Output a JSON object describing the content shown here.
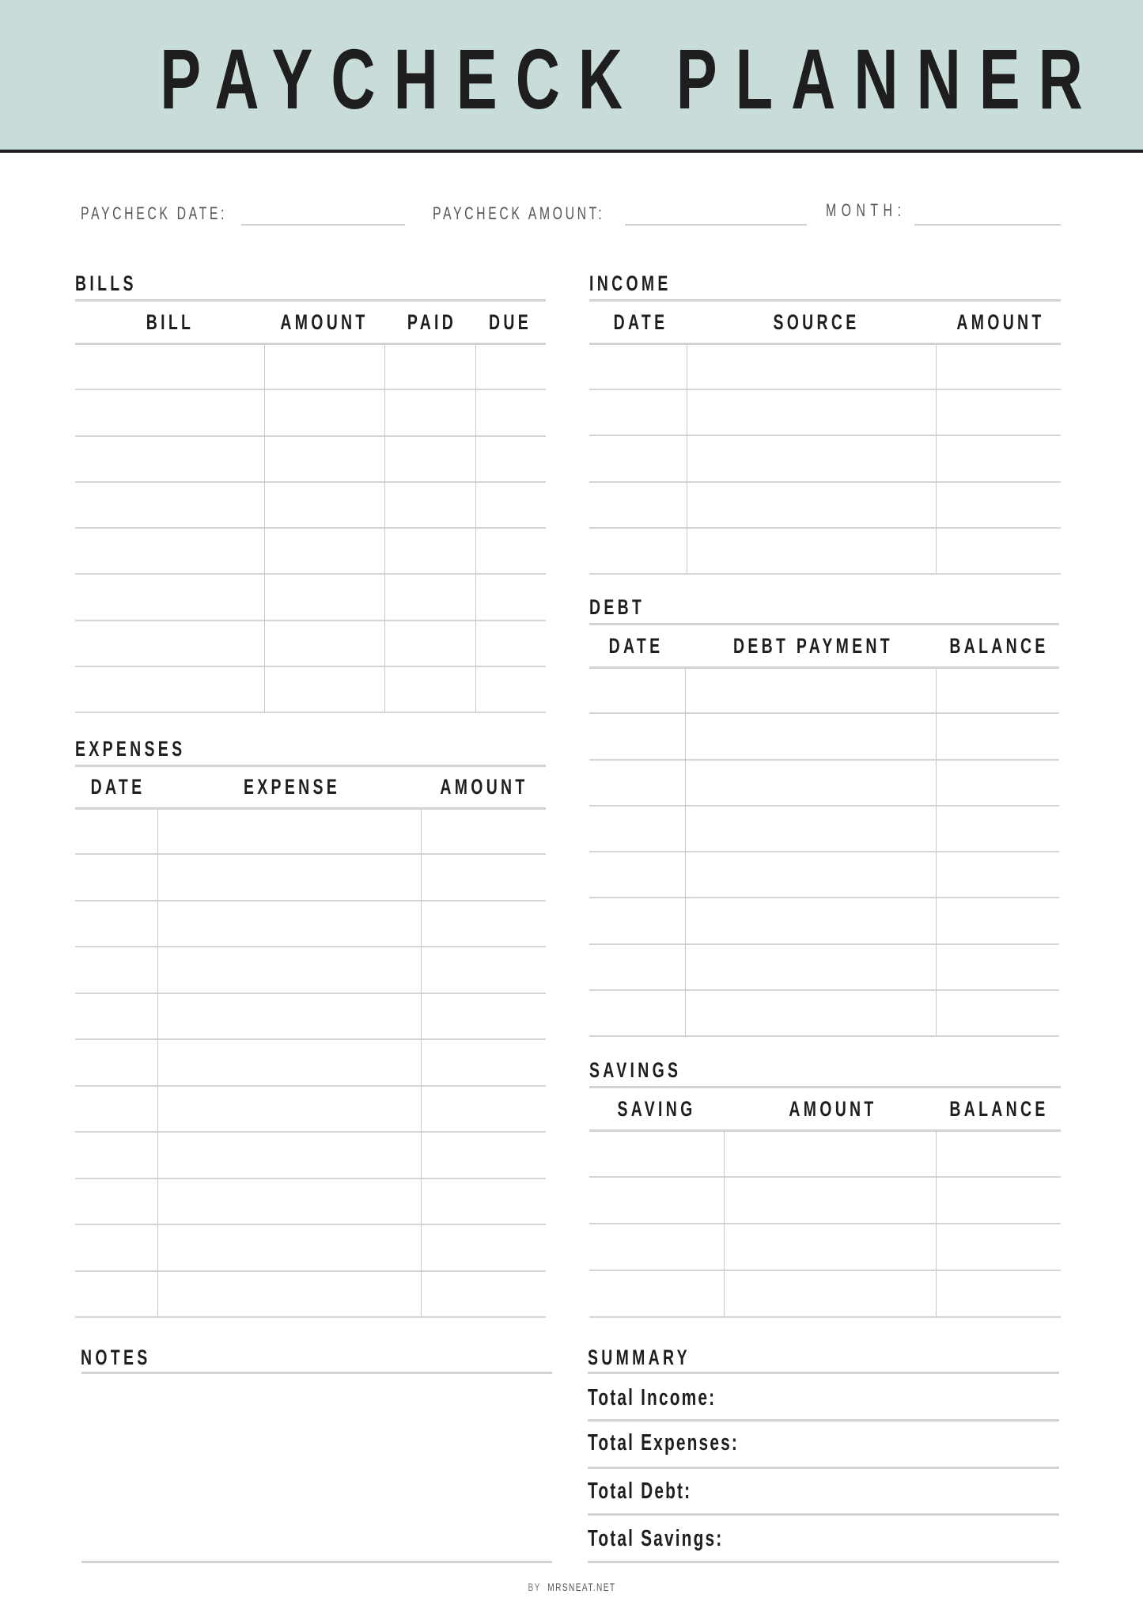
{
  "title": "PAYCHECK PLANNER",
  "colors": {
    "header_band": "#c8dcd9",
    "rule": "#1e1e1e",
    "lines": "#d3d3d3"
  },
  "fields": {
    "paycheck_date": "PAYCHECK DATE:",
    "paycheck_amount": "PAYCHECK AMOUNT:",
    "month": "MONTH:"
  },
  "bills": {
    "title": "BILLS",
    "columns": [
      "BILL",
      "AMOUNT",
      "PAID",
      "DUE"
    ]
  },
  "income": {
    "title": "INCOME",
    "columns": [
      "DATE",
      "SOURCE",
      "AMOUNT"
    ]
  },
  "expenses": {
    "title": "EXPENSES",
    "columns": [
      "DATE",
      "EXPENSE",
      "AMOUNT"
    ]
  },
  "debt": {
    "title": "DEBT",
    "columns": [
      "DATE",
      "DEBT PAYMENT",
      "BALANCE"
    ]
  },
  "savings": {
    "title": "SAVINGS",
    "columns": [
      "SAVING",
      "AMOUNT",
      "BALANCE"
    ]
  },
  "notes": {
    "title": "NOTES"
  },
  "summary": {
    "title": "SUMMARY",
    "items": [
      "Total Income:",
      "Total Expenses:",
      "Total Debt:",
      "Total Savings:"
    ]
  },
  "footer": {
    "by": "BY",
    "site": "MRSNEAT.NET"
  }
}
